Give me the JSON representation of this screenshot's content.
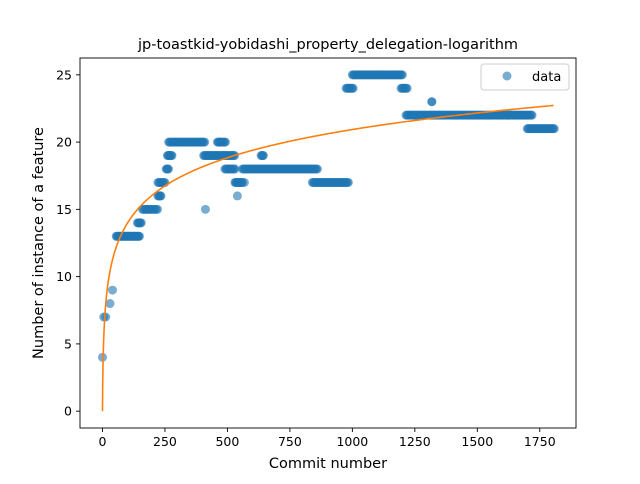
{
  "chart_data": {
    "type": "scatter",
    "title": "jp-toastkid-yobidashi_property_delegation-logarithm",
    "xlabel": "Commit number",
    "ylabel": "Number of instance of a feature",
    "xlim": [
      -90,
      1895
    ],
    "ylim": [
      -1.25,
      26.25
    ],
    "xticks": [
      0,
      250,
      500,
      750,
      1000,
      1250,
      1500,
      1750
    ],
    "yticks": [
      0,
      5,
      10,
      15,
      20,
      25
    ],
    "grid": false,
    "legend": {
      "placement": "top-right",
      "entries": [
        {
          "label": "data",
          "marker": "circle",
          "color": "#1f77b4"
        }
      ]
    },
    "series": [
      {
        "name": "data",
        "kind": "scatter",
        "color": "#1f77b4",
        "segments": [
          {
            "x": [
              0,
              0,
              4
            ],
            "y": [
              4,
              6,
              6
            ]
          },
          {
            "x": [
              5,
              20,
              8
            ],
            "y": [
              7,
              7,
              7
            ]
          },
          {
            "x": [
              30,
              40,
              40
            ],
            "y": [
              8,
              8,
              9
            ]
          },
          {
            "x": [
              40,
              50,
              45
            ],
            "y": [
              9,
              9,
              10
            ]
          },
          {
            "x": [
              55,
              150,
              3
            ],
            "y": [
              13,
              13,
              13
            ]
          },
          {
            "x": [
              140,
              155,
              3
            ],
            "y": [
              14,
              14,
              14
            ]
          },
          {
            "x": [
              160,
              220,
              5
            ],
            "y": [
              15,
              15,
              15
            ]
          },
          {
            "x": [
              222,
              235,
              3
            ],
            "y": [
              16,
              16,
              16
            ]
          },
          {
            "x": [
              222,
              250,
              4
            ],
            "y": [
              17,
              17,
              17
            ]
          },
          {
            "x": [
              255,
              265,
              3
            ],
            "y": [
              18,
              18,
              18
            ]
          },
          {
            "x": [
              260,
              280,
              3
            ],
            "y": [
              19,
              19,
              19
            ]
          },
          {
            "x": [
              265,
              410,
              4
            ],
            "y": [
              20,
              20,
              20
            ]
          },
          {
            "x": [
              405,
              530,
              4
            ],
            "y": [
              19,
              19,
              19
            ]
          },
          {
            "x": [
              460,
              495,
              4
            ],
            "y": [
              20,
              20,
              20
            ]
          },
          {
            "x": [
              490,
              530,
              4
            ],
            "y": [
              18,
              18,
              18
            ]
          },
          {
            "x": [
              530,
              560,
              3
            ],
            "y": [
              17,
              17,
              17
            ]
          },
          {
            "x": [
              540,
              540,
              1
            ],
            "y": [
              16,
              16,
              16
            ]
          },
          {
            "x": [
              560,
              860,
              4
            ],
            "y": [
              18,
              18,
              18
            ]
          },
          {
            "x": [
              635,
              645,
              3
            ],
            "y": [
              19,
              19,
              19
            ]
          },
          {
            "x": [
              840,
              985,
              4
            ],
            "y": [
              17,
              17,
              17
            ]
          },
          {
            "x": [
              975,
              1005,
              4
            ],
            "y": [
              24,
              24,
              24
            ]
          },
          {
            "x": [
              1000,
              1200,
              4
            ],
            "y": [
              25,
              25,
              25
            ]
          },
          {
            "x": [
              1195,
              1220,
              4
            ],
            "y": [
              24,
              24,
              24
            ]
          },
          {
            "x": [
              1215,
              1720,
              4
            ],
            "y": [
              22,
              22,
              22
            ]
          },
          {
            "x": [
              1700,
              1810,
              4
            ],
            "y": [
              21,
              21,
              21
            ]
          }
        ],
        "points": [
          {
            "x": 1318,
            "y": 23
          },
          {
            "x": 412,
            "y": 15,
            "faint": true
          },
          {
            "x": 568,
            "y": 17,
            "faint": true
          },
          {
            "x": 467,
            "y": 20,
            "faint": true
          }
        ]
      },
      {
        "name": "",
        "kind": "line",
        "color": "#ff7f0e",
        "fit": {
          "model": "a*ln(x+1)+b",
          "a": 3.03,
          "b": 0
        },
        "x_range": [
          0,
          1805
        ]
      }
    ]
  }
}
